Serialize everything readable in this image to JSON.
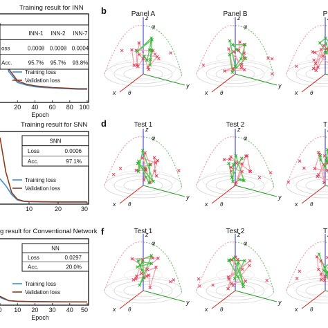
{
  "left_panels": [
    {
      "title": "Training result for INN",
      "table": {
        "headers": [
          "",
          "INN-1",
          "INN-2",
          "INN-7"
        ],
        "rows": [
          [
            "oss",
            "0.0008",
            "0.0008",
            "0.0004"
          ],
          [
            "Acc.",
            "95.7%",
            "95.7%",
            "93.8%"
          ]
        ]
      },
      "legend": [
        "Training loss",
        "Validation loss"
      ],
      "xticks": [
        "20",
        "40",
        "60",
        "80",
        "100"
      ],
      "xlabel": "Epoch"
    },
    {
      "title": "Training result for SNN",
      "table": {
        "headers": [
          "SNN"
        ],
        "rows": [
          [
            "Loss",
            "0.0006"
          ],
          [
            "Acc.",
            "97.1%"
          ]
        ]
      },
      "legend": [
        "Training loss",
        "Validation loss"
      ],
      "xticks": [
        "10",
        "20",
        "30"
      ],
      "xlabel": ""
    },
    {
      "title": "g result for Conventional Network",
      "table": {
        "headers": [
          "NN"
        ],
        "rows": [
          [
            "Loss",
            "0.0297"
          ],
          [
            "Acc.",
            "20.0%"
          ]
        ]
      },
      "legend": [
        "Training loss",
        "Validation loss"
      ],
      "xticks": [
        "0",
        "10",
        "20",
        "30",
        "40",
        "50"
      ],
      "xlabel": "Epoch"
    }
  ],
  "panel_letters": [
    "b",
    "d",
    "f"
  ],
  "right_rows": [
    [
      "Panel A",
      "Panel B",
      "P"
    ],
    [
      "Test 1",
      "Test 2",
      "T"
    ],
    [
      "Test 1",
      "Test 2",
      "T"
    ]
  ],
  "axis_symbols": {
    "z": "z",
    "phi": "φ",
    "x": "x",
    "y": "y",
    "theta": "θ"
  },
  "colors": {
    "training": "#3a8fd6",
    "validation": "#8b3a1e",
    "red_mark": "#e0405a",
    "green_mark": "#2fae2f",
    "axis_blue": "#2a2ad0",
    "axis_red": "#d02020",
    "axis_green": "#2a9a2a"
  },
  "chart_data": [
    {
      "type": "line",
      "title": "Training result for INN",
      "xlabel": "Epoch",
      "ylabel": "",
      "x": [
        0,
        10,
        20,
        30,
        40,
        50,
        60,
        70,
        80,
        90,
        100
      ],
      "xlim": [
        0,
        100
      ],
      "ylim": [
        0,
        1
      ],
      "series": [
        {
          "name": "Training loss",
          "values": [
            0.9,
            0.35,
            0.22,
            0.19,
            0.17,
            0.16,
            0.155,
            0.15,
            0.145,
            0.14,
            0.14
          ]
        },
        {
          "name": "Validation loss",
          "values": [
            0.92,
            0.38,
            0.24,
            0.2,
            0.18,
            0.17,
            0.16,
            0.155,
            0.15,
            0.145,
            0.145
          ]
        }
      ]
    },
    {
      "type": "line",
      "title": "Training result for SNN",
      "xlabel": "",
      "ylabel": "",
      "x": [
        0,
        2,
        4,
        6,
        8,
        10,
        15,
        20,
        25,
        30
      ],
      "xlim": [
        0,
        30
      ],
      "ylim": [
        0,
        1
      ],
      "series": [
        {
          "name": "Training loss",
          "values": [
            0.35,
            0.25,
            0.12,
            0.04,
            0.02,
            0.015,
            0.012,
            0.01,
            0.01,
            0.01
          ]
        },
        {
          "name": "Validation loss",
          "values": [
            0.95,
            0.45,
            0.15,
            0.05,
            0.025,
            0.018,
            0.014,
            0.012,
            0.012,
            0.012
          ]
        }
      ]
    },
    {
      "type": "line",
      "title": "g result for Conventional Network",
      "xlabel": "Epoch",
      "ylabel": "",
      "x": [
        0,
        5,
        10,
        20,
        30,
        40,
        50
      ],
      "xlim": [
        0,
        50
      ],
      "ylim": [
        0,
        1
      ],
      "series": [
        {
          "name": "Training loss",
          "values": [
            0.1,
            0.05,
            0.04,
            0.035,
            0.03,
            0.03,
            0.03
          ]
        },
        {
          "name": "Validation loss",
          "values": [
            0.12,
            0.05,
            0.04,
            0.035,
            0.032,
            0.031,
            0.03
          ]
        }
      ]
    }
  ]
}
